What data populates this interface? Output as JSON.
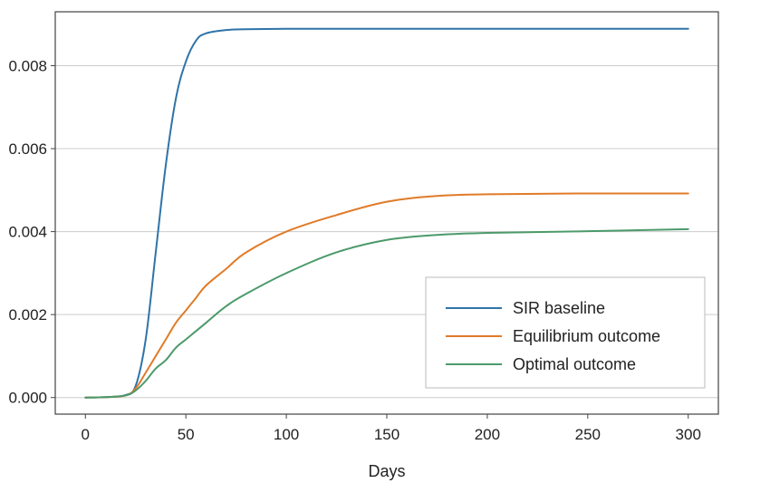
{
  "colors": {
    "background": "#ffffff",
    "grid": "#cccccc",
    "frame": "#444444",
    "series": [
      "#2e74a8",
      "#e07b28",
      "#4c9a6a"
    ]
  },
  "chart_data": {
    "type": "line",
    "xlabel": "Days",
    "ylabel": "",
    "title": "",
    "xlim": [
      -15,
      315
    ],
    "ylim": [
      -0.0004,
      0.0093
    ],
    "xticks": [
      0,
      50,
      100,
      150,
      200,
      250,
      300
    ],
    "xtick_labels": [
      "0",
      "50",
      "100",
      "150",
      "200",
      "250",
      "300"
    ],
    "yticks": [
      0,
      0.002,
      0.004,
      0.006,
      0.008
    ],
    "ytick_labels": [
      "0.000",
      "0.002",
      "0.004",
      "0.006",
      "0.008"
    ],
    "grid": "horizontal",
    "legend_position": "lower-right",
    "x": [
      0,
      10,
      20,
      25,
      30,
      35,
      40,
      45,
      50,
      55,
      60,
      70,
      80,
      100,
      125,
      150,
      175,
      200,
      250,
      300
    ],
    "series": [
      {
        "name": "SIR baseline",
        "color": "#2e74a8",
        "values": [
          0,
          1e-05,
          6e-05,
          0.00028,
          0.0014,
          0.0035,
          0.0056,
          0.0072,
          0.0081,
          0.0086,
          0.00878,
          0.00886,
          0.00888,
          0.00889,
          0.00889,
          0.00889,
          0.00889,
          0.00889,
          0.00889,
          0.00889
        ]
      },
      {
        "name": "Equilibrium outcome",
        "color": "#e07b28",
        "values": [
          0,
          1e-05,
          5e-05,
          0.00022,
          0.0006,
          0.001,
          0.0014,
          0.0018,
          0.0021,
          0.0024,
          0.0027,
          0.0031,
          0.0035,
          0.004,
          0.0044,
          0.00472,
          0.00486,
          0.0049,
          0.00492,
          0.00492
        ]
      },
      {
        "name": "Optimal outcome",
        "color": "#4c9a6a",
        "values": [
          0,
          1e-05,
          5e-05,
          0.00017,
          0.0004,
          0.0007,
          0.0009,
          0.0012,
          0.0014,
          0.0016,
          0.0018,
          0.0022,
          0.0025,
          0.003,
          0.0035,
          0.0038,
          0.00392,
          0.00397,
          0.00401,
          0.00406
        ]
      }
    ]
  }
}
